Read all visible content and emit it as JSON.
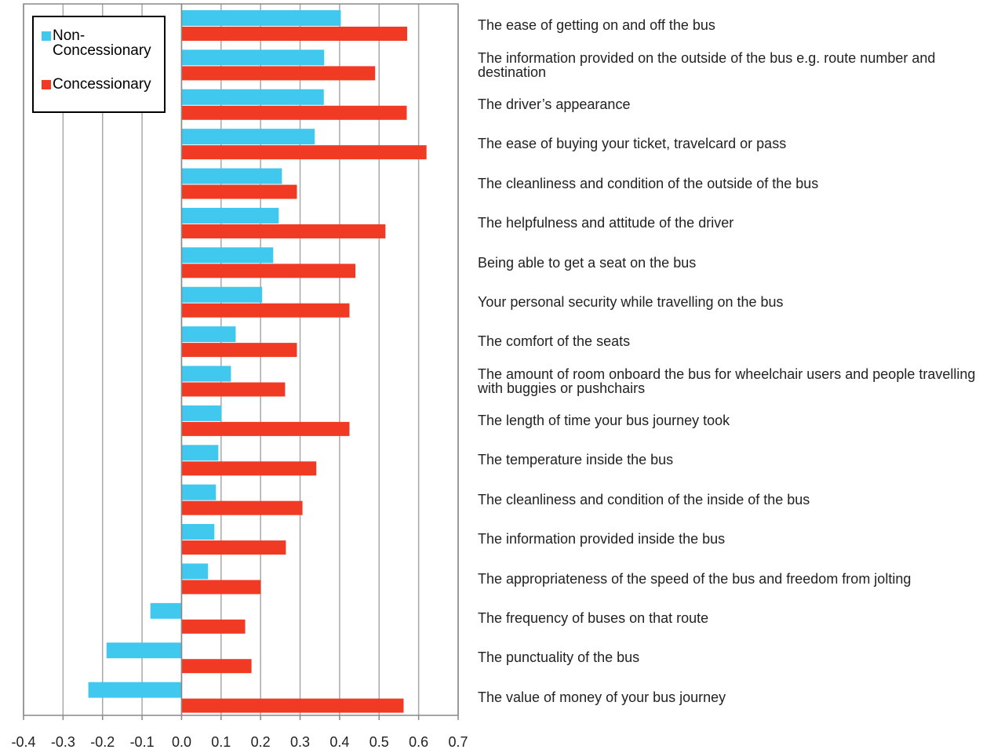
{
  "chart_data": {
    "type": "barh",
    "categories": [
      "The ease of getting on and off the bus",
      "The information provided on the outside of the bus e.g. route number and destination",
      "The driver’s appearance",
      "The ease of buying your ticket, travelcard or pass",
      "The cleanliness and condition of the outside of the bus",
      "The helpfulness and attitude of the driver",
      "Being able to get a seat on the bus",
      "Your personal security while travelling on the bus",
      "The comfort of the seats",
      "The amount of room onboard the bus for wheelchair users and people travelling with buggies or pushchairs",
      "The length of time your bus journey took",
      "The temperature inside the bus",
      "The cleanliness and condition of the inside of the bus",
      "The information provided inside the bus",
      "The appropriateness of the speed of the bus and freedom from jolting",
      "The frequency of buses on that route",
      "The punctuality of the bus",
      "The value of money of your bus journey"
    ],
    "series": [
      {
        "name": "Non-Concessionary",
        "color": "#40c8ef",
        "values": [
          0.403,
          0.361,
          0.36,
          0.337,
          0.254,
          0.246,
          0.232,
          0.204,
          0.137,
          0.125,
          0.101,
          0.093,
          0.087,
          0.083,
          0.067,
          -0.079,
          -0.19,
          -0.236
        ]
      },
      {
        "name": "Concessionary",
        "color": "#f03a24",
        "values": [
          0.571,
          0.49,
          0.57,
          0.62,
          0.292,
          0.516,
          0.44,
          0.425,
          0.292,
          0.262,
          0.425,
          0.341,
          0.306,
          0.264,
          0.2,
          0.161,
          0.177,
          0.562
        ]
      }
    ],
    "xlim": [
      -0.4,
      0.7
    ],
    "xticks": [
      -0.4,
      -0.3,
      -0.2,
      -0.1,
      {
        "value": 0,
        "label": "0.0"
      },
      0.1,
      0.2,
      0.3,
      0.4,
      0.5,
      0.6,
      0.7
    ],
    "grid": true,
    "legend": "upper left"
  }
}
